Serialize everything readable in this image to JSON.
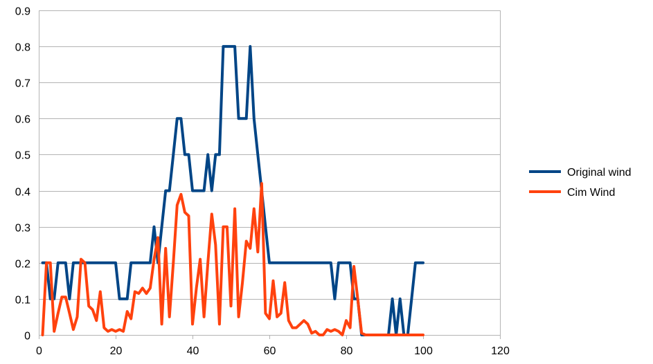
{
  "chart_data": {
    "type": "line",
    "title": "",
    "xlabel": "",
    "ylabel": "",
    "xlim": [
      0,
      120
    ],
    "ylim": [
      0,
      0.9
    ],
    "xticks": [
      0,
      20,
      40,
      60,
      80,
      100,
      120
    ],
    "yticks": [
      0,
      0.1,
      0.2,
      0.3,
      0.4,
      0.5,
      0.6,
      0.7,
      0.8,
      0.9
    ],
    "xtick_labels": [
      "0",
      "20",
      "40",
      "60",
      "80",
      "100",
      "120"
    ],
    "ytick_labels": [
      "0",
      "0.1",
      "0.2",
      "0.3",
      "0.4",
      "0.5",
      "0.6",
      "0.7",
      "0.8",
      "0.9"
    ],
    "grid": "horizontal",
    "legend_position": "right",
    "series": [
      {
        "name": "Original wind",
        "color": "#004586",
        "x": [
          1,
          2,
          3,
          4,
          5,
          6,
          7,
          8,
          9,
          10,
          11,
          12,
          13,
          14,
          15,
          16,
          17,
          18,
          19,
          20,
          21,
          22,
          23,
          24,
          25,
          26,
          27,
          28,
          29,
          30,
          31,
          32,
          33,
          34,
          35,
          36,
          37,
          38,
          39,
          40,
          41,
          42,
          43,
          44,
          45,
          46,
          47,
          48,
          49,
          50,
          51,
          52,
          53,
          54,
          55,
          56,
          57,
          58,
          59,
          60,
          61,
          62,
          63,
          64,
          65,
          66,
          67,
          68,
          69,
          70,
          71,
          72,
          73,
          74,
          75,
          76,
          77,
          78,
          79,
          80,
          81,
          82,
          83,
          84,
          85,
          86,
          87,
          88,
          89,
          90,
          91,
          92,
          93,
          94,
          95,
          96,
          97,
          98,
          99,
          100
        ],
        "values": [
          0.2,
          0.2,
          0.1,
          0.1,
          0.2,
          0.2,
          0.2,
          0.1,
          0.2,
          0.2,
          0.2,
          0.2,
          0.2,
          0.2,
          0.2,
          0.2,
          0.2,
          0.2,
          0.2,
          0.2,
          0.1,
          0.1,
          0.1,
          0.2,
          0.2,
          0.2,
          0.2,
          0.2,
          0.2,
          0.3,
          0.2,
          0.3,
          0.4,
          0.4,
          0.5,
          0.6,
          0.6,
          0.5,
          0.5,
          0.4,
          0.4,
          0.4,
          0.4,
          0.5,
          0.4,
          0.5,
          0.5,
          0.8,
          0.8,
          0.8,
          0.8,
          0.6,
          0.6,
          0.6,
          0.8,
          0.6,
          0.5,
          0.4,
          0.3,
          0.2,
          0.2,
          0.2,
          0.2,
          0.2,
          0.2,
          0.2,
          0.2,
          0.2,
          0.2,
          0.2,
          0.2,
          0.2,
          0.2,
          0.2,
          0.2,
          0.2,
          0.1,
          0.2,
          0.2,
          0.2,
          0.2,
          0.1,
          0.1,
          0,
          0,
          0,
          0,
          0,
          0,
          0,
          0,
          0.1,
          0,
          0.1,
          0,
          0,
          0.1,
          0.2,
          0.2,
          0.2
        ]
      },
      {
        "name": "Cim Wind",
        "color": "#ff420e",
        "x": [
          1,
          2,
          3,
          4,
          5,
          6,
          7,
          8,
          9,
          10,
          11,
          12,
          13,
          14,
          15,
          16,
          17,
          18,
          19,
          20,
          21,
          22,
          23,
          24,
          25,
          26,
          27,
          28,
          29,
          30,
          31,
          32,
          33,
          34,
          35,
          36,
          37,
          38,
          39,
          40,
          41,
          42,
          43,
          44,
          45,
          46,
          47,
          48,
          49,
          50,
          51,
          52,
          53,
          54,
          55,
          56,
          57,
          58,
          59,
          60,
          61,
          62,
          63,
          64,
          65,
          66,
          67,
          68,
          69,
          70,
          71,
          72,
          73,
          74,
          75,
          76,
          77,
          78,
          79,
          80,
          81,
          82,
          83,
          84,
          85,
          86,
          87,
          88,
          89,
          90,
          91,
          92,
          93,
          94,
          95,
          96,
          97,
          98,
          99,
          100
        ],
        "values": [
          0,
          0.2,
          0.2,
          0.01,
          0.06,
          0.105,
          0.105,
          0.06,
          0.015,
          0.05,
          0.21,
          0.2,
          0.08,
          0.07,
          0.04,
          0.12,
          0.02,
          0.01,
          0.015,
          0.01,
          0.015,
          0.01,
          0.065,
          0.045,
          0.12,
          0.115,
          0.13,
          0.115,
          0.13,
          0.21,
          0.27,
          0.03,
          0.24,
          0.05,
          0.2,
          0.36,
          0.39,
          0.34,
          0.33,
          0.03,
          0.13,
          0.21,
          0.05,
          0.2,
          0.335,
          0.25,
          0.03,
          0.3,
          0.3,
          0.08,
          0.35,
          0.05,
          0.145,
          0.26,
          0.24,
          0.35,
          0.23,
          0.42,
          0.06,
          0.045,
          0.15,
          0.05,
          0.06,
          0.145,
          0.04,
          0.02,
          0.02,
          0.03,
          0.04,
          0.03,
          0.005,
          0.01,
          0,
          0,
          0.015,
          0.01,
          0.015,
          0.01,
          0,
          0.04,
          0.02,
          0.19,
          0.1,
          0.005,
          0,
          0,
          0,
          0,
          0,
          0,
          0,
          0,
          0,
          0,
          0,
          0,
          0,
          0,
          0,
          0
        ]
      }
    ]
  }
}
